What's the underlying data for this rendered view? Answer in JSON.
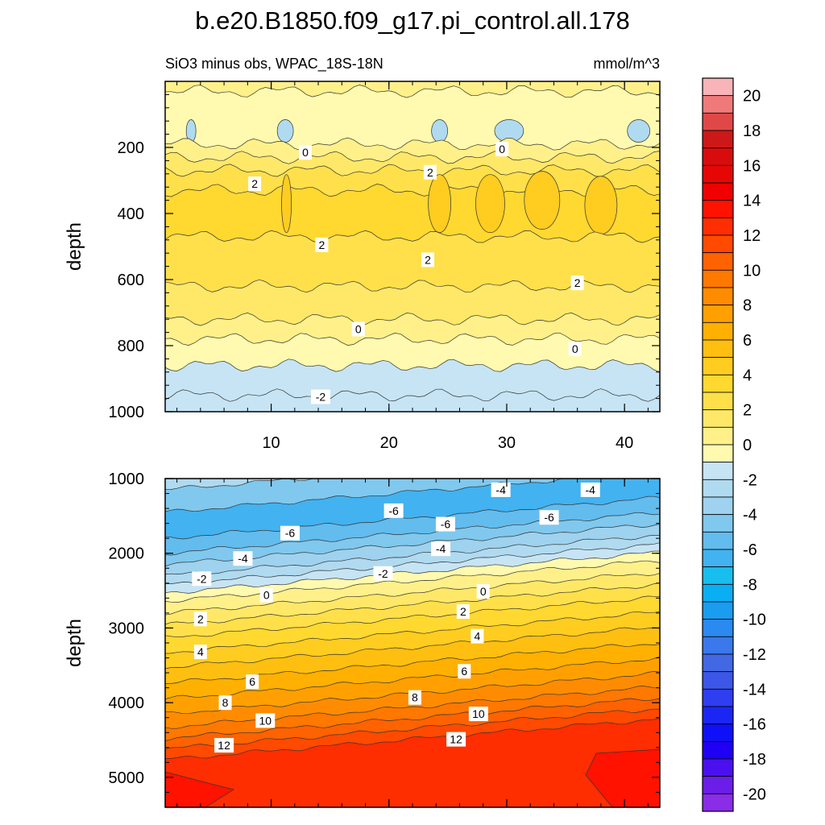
{
  "chart_data": {
    "type": "heatmap",
    "title": "b.e20.B1850.f09_g17.pi_control.all.178",
    "subtitle_left": "SiO3 minus obs, WPAC_18S-18N",
    "units": "mmol/m^3",
    "x_ticks": [
      "10",
      "20",
      "30",
      "40"
    ],
    "x_range": [
      1,
      43
    ],
    "colorbar": {
      "labels": [
        "20",
        "18",
        "16",
        "14",
        "12",
        "10",
        "8",
        "6",
        "4",
        "2",
        "0",
        "-2",
        "-4",
        "-6",
        "-8",
        "-10",
        "-12",
        "-14",
        "-16",
        "-18",
        "-20"
      ],
      "levels": [
        21,
        20,
        19,
        18,
        17,
        16,
        15,
        14,
        13,
        12,
        11,
        10,
        9,
        8,
        7,
        6,
        5,
        4,
        3,
        2,
        1,
        0,
        -1,
        -2,
        -3,
        -4,
        -5,
        -6,
        -7,
        -8,
        -9,
        -10,
        -11,
        -12,
        -13,
        -14,
        -15,
        -16,
        -17,
        -18,
        -19,
        -20,
        -21
      ],
      "colors": [
        "#f8b4b8",
        "#f07a7a",
        "#e04848",
        "#cc1818",
        "#d80c0c",
        "#e60606",
        "#f00000",
        "#ff1200",
        "#ff2e00",
        "#ff4a00",
        "#ff6200",
        "#ff7800",
        "#ff8c00",
        "#ffa000",
        "#ffb000",
        "#ffbf10",
        "#ffcc20",
        "#ffd830",
        "#ffe04a",
        "#ffe868",
        "#fff08a",
        "#fffaaf",
        "#c6e4f4",
        "#b0daf0",
        "#9ed2ee",
        "#80c8ee",
        "#62bcee",
        "#42b2f0",
        "#18beee",
        "#0aaef2",
        "#1a9cf0",
        "#2a8af0",
        "#3a78ec",
        "#4268e4",
        "#3c56e8",
        "#2e3ef0",
        "#1c26f4",
        "#1010f8",
        "#2000f4",
        "#4a10ee",
        "#6a1ee8",
        "#8a2ce8"
      ]
    },
    "panels": [
      {
        "ylabel": "depth",
        "y_ticks": [
          "200",
          "400",
          "600",
          "800",
          "1000"
        ],
        "y_range": [
          0,
          1000
        ],
        "bands": [
          {
            "depth": 0,
            "value": 0.3,
            "pattern": "mixed"
          },
          {
            "depth": 30,
            "value": -0.8,
            "pattern": "flat"
          },
          {
            "depth": 190,
            "value": 0.5,
            "pattern": "flat"
          },
          {
            "depth": 230,
            "value": 1.5,
            "pattern": "flat"
          },
          {
            "depth": 270,
            "value": 2.5,
            "pattern": "flat"
          },
          {
            "depth": 330,
            "value": 3.5,
            "pattern": "blobs"
          },
          {
            "depth": 470,
            "value": 2.5,
            "pattern": "flat"
          },
          {
            "depth": 620,
            "value": 1.5,
            "pattern": "flat"
          },
          {
            "depth": 720,
            "value": 0.5,
            "pattern": "flat"
          },
          {
            "depth": 780,
            "value": -0.5,
            "pattern": "flat"
          },
          {
            "depth": 860,
            "value": -1.2,
            "pattern": "flat"
          },
          {
            "depth": 950,
            "value": -1.8,
            "pattern": "flat"
          }
        ],
        "contour_labels": [
          {
            "text": "0",
            "x": 12.9,
            "depth": 215
          },
          {
            "text": "0",
            "x": 29.6,
            "depth": 205
          },
          {
            "text": "2",
            "x": 23.5,
            "depth": 275
          },
          {
            "text": "2",
            "x": 8.6,
            "depth": 310
          },
          {
            "text": "2",
            "x": 14.3,
            "depth": 495
          },
          {
            "text": "2",
            "x": 23.3,
            "depth": 540
          },
          {
            "text": "2",
            "x": 36.0,
            "depth": 610
          },
          {
            "text": "0",
            "x": 17.4,
            "depth": 750
          },
          {
            "text": "0",
            "x": 35.8,
            "depth": 810
          },
          {
            "text": "-2",
            "x": 14.2,
            "depth": 955
          }
        ]
      },
      {
        "ylabel": "depth",
        "y_ticks": [
          "1000",
          "2000",
          "3000",
          "4000",
          "5000"
        ],
        "y_range": [
          1000,
          5400
        ],
        "bands": [
          {
            "depth": 1000,
            "value": -2.5
          },
          {
            "depth": 1150,
            "value": -4.5
          },
          {
            "depth": 1450,
            "value": -6.5
          },
          {
            "depth": 1800,
            "value": -5.5
          },
          {
            "depth": 2000,
            "value": -4.5
          },
          {
            "depth": 2150,
            "value": -3.5
          },
          {
            "depth": 2300,
            "value": -2.5
          },
          {
            "depth": 2420,
            "value": -1.5
          },
          {
            "depth": 2530,
            "value": -0.5
          },
          {
            "depth": 2640,
            "value": 0.5
          },
          {
            "depth": 2800,
            "value": 1.5
          },
          {
            "depth": 2960,
            "value": 2.5
          },
          {
            "depth": 3130,
            "value": 3.5
          },
          {
            "depth": 3330,
            "value": 4.5
          },
          {
            "depth": 3530,
            "value": 5.5
          },
          {
            "depth": 3740,
            "value": 6.5
          },
          {
            "depth": 3950,
            "value": 7.5
          },
          {
            "depth": 4150,
            "value": 8.5
          },
          {
            "depth": 4330,
            "value": 9.5
          },
          {
            "depth": 4480,
            "value": 10.5
          },
          {
            "depth": 4620,
            "value": 11.5
          },
          {
            "depth": 4760,
            "value": 12.5
          }
        ],
        "contour_labels": [
          {
            "text": "-4",
            "x": 29.5,
            "depth": 1150
          },
          {
            "text": "-4",
            "x": 37.1,
            "depth": 1150
          },
          {
            "text": "-6",
            "x": 20.4,
            "depth": 1430
          },
          {
            "text": "-6",
            "x": 33.6,
            "depth": 1520
          },
          {
            "text": "-6",
            "x": 24.8,
            "depth": 1610
          },
          {
            "text": "-6",
            "x": 11.6,
            "depth": 1730
          },
          {
            "text": "-4",
            "x": 24.4,
            "depth": 1940
          },
          {
            "text": "-4",
            "x": 7.6,
            "depth": 2070
          },
          {
            "text": "-2",
            "x": 19.5,
            "depth": 2270
          },
          {
            "text": "-2",
            "x": 4.1,
            "depth": 2340
          },
          {
            "text": "0",
            "x": 28.0,
            "depth": 2510
          },
          {
            "text": "0",
            "x": 9.6,
            "depth": 2560
          },
          {
            "text": "2",
            "x": 26.3,
            "depth": 2780
          },
          {
            "text": "2",
            "x": 4.0,
            "depth": 2880
          },
          {
            "text": "4",
            "x": 27.5,
            "depth": 3110
          },
          {
            "text": "4",
            "x": 4.0,
            "depth": 3320
          },
          {
            "text": "6",
            "x": 26.4,
            "depth": 3580
          },
          {
            "text": "6",
            "x": 8.4,
            "depth": 3720
          },
          {
            "text": "8",
            "x": 22.2,
            "depth": 3930
          },
          {
            "text": "8",
            "x": 6.1,
            "depth": 4000
          },
          {
            "text": "10",
            "x": 27.6,
            "depth": 4150
          },
          {
            "text": "10",
            "x": 9.5,
            "depth": 4240
          },
          {
            "text": "12",
            "x": 25.7,
            "depth": 4490
          },
          {
            "text": "12",
            "x": 6.0,
            "depth": 4570
          }
        ]
      }
    ]
  }
}
